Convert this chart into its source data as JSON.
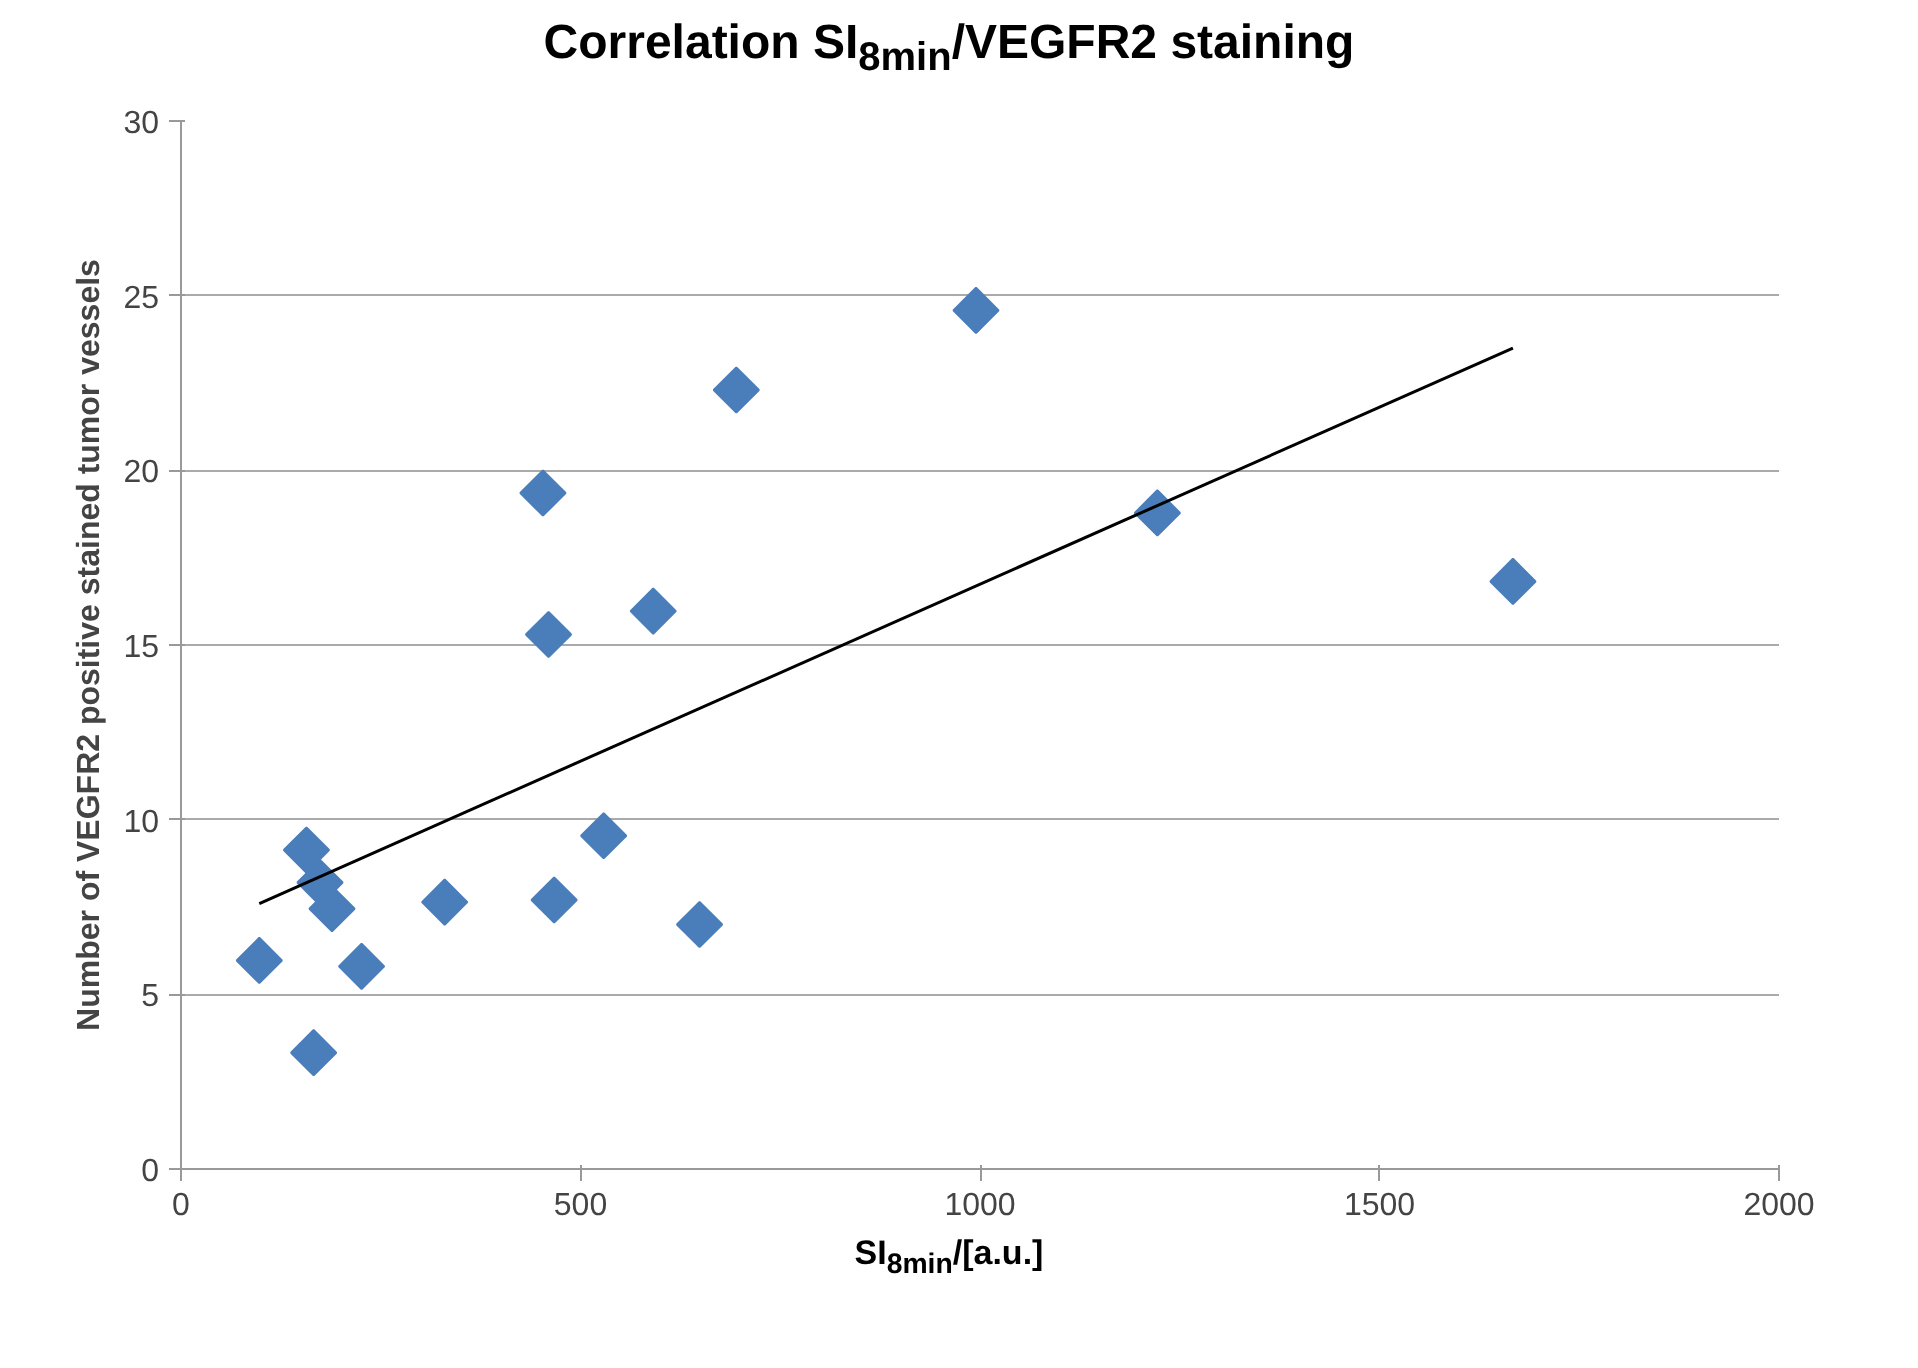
{
  "chart_data": {
    "type": "scatter",
    "title": "Correlation SI$_{8min}$/VEGFR2 staining",
    "xlabel": "SI$_{8min}$/[a.u.]",
    "ylabel": "Number of VEGFR2 positive stained tumor vessels",
    "xlim": [
      0,
      2000
    ],
    "xticks": [
      0,
      500,
      1000,
      1500,
      2000
    ],
    "ylim": [
      0,
      30
    ],
    "yticks": [
      0,
      5,
      10,
      15,
      20,
      25,
      30
    ],
    "grid": "y",
    "series": [
      {
        "marker": "diamond",
        "color": "#4a7ebb",
        "x": [
          98,
          157,
          174,
          189,
          226,
          166,
          330,
          467,
          529,
          649,
          453,
          460,
          591,
          695,
          995,
          1222,
          1667
        ],
        "values": [
          5.97,
          9.13,
          8.2,
          7.45,
          5.8,
          3.33,
          7.64,
          7.7,
          9.54,
          7.0,
          19.35,
          15.3,
          15.97,
          22.3,
          24.58,
          18.78,
          16.82
        ]
      },
      {
        "type": "line",
        "color": "#000000",
        "x": [
          98,
          1667
        ],
        "values": [
          7.6,
          23.5
        ]
      }
    ]
  }
}
